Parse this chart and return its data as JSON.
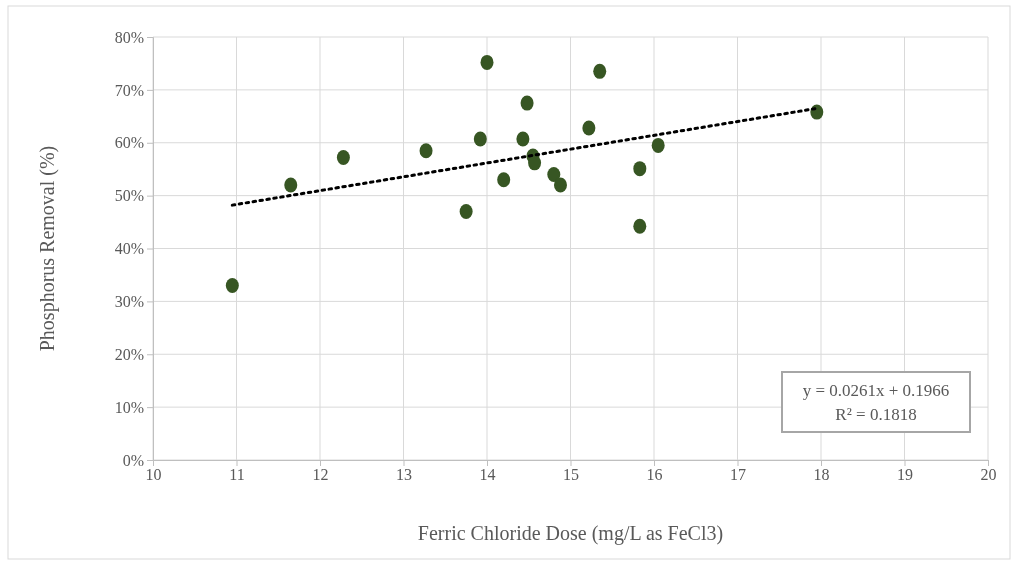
{
  "chart_data": {
    "type": "scatter",
    "xlabel": "Ferric Chloride Dose (mg/L as FeCl3)",
    "ylabel": "Phosphorus Removal (%)",
    "xlim": [
      10,
      20
    ],
    "xticks": [
      10,
      11,
      12,
      13,
      14,
      15,
      16,
      17,
      18,
      19,
      20
    ],
    "ylim": [
      0,
      80
    ],
    "yticks": [
      {
        "value": 0,
        "label": "0%"
      },
      {
        "value": 10,
        "label": "10%"
      },
      {
        "value": 20,
        "label": "20%"
      },
      {
        "value": 30,
        "label": "30%"
      },
      {
        "value": 40,
        "label": "40%"
      },
      {
        "value": 50,
        "label": "50%"
      },
      {
        "value": 60,
        "label": "60%"
      },
      {
        "value": 70,
        "label": "70%"
      },
      {
        "value": 80,
        "label": "80%"
      }
    ],
    "grid": true,
    "series": [
      {
        "marker": "circle",
        "color": "#375623",
        "x": [
          10.95,
          11.65,
          12.28,
          13.27,
          13.75,
          13.92,
          14.0,
          14.2,
          14.43,
          14.48,
          14.55,
          14.57,
          14.8,
          14.88,
          15.22,
          15.35,
          15.83,
          15.83,
          16.05,
          17.95
        ],
        "values": [
          33,
          52,
          57.2,
          58.5,
          47,
          60.7,
          75.2,
          53,
          60.7,
          67.5,
          57.5,
          56.2,
          54,
          52,
          62.8,
          73.5,
          55.1,
          44.2,
          59.5,
          65.8
        ]
      },
      {
        "type": "line",
        "color": "#000000",
        "line_style": "dotted",
        "x": [
          10.95,
          17.95
        ],
        "values": [
          48.2,
          66.5
        ]
      }
    ],
    "annotations": [
      "y = 0.0261x + 0.1966\nR² = 0.1818"
    ]
  }
}
